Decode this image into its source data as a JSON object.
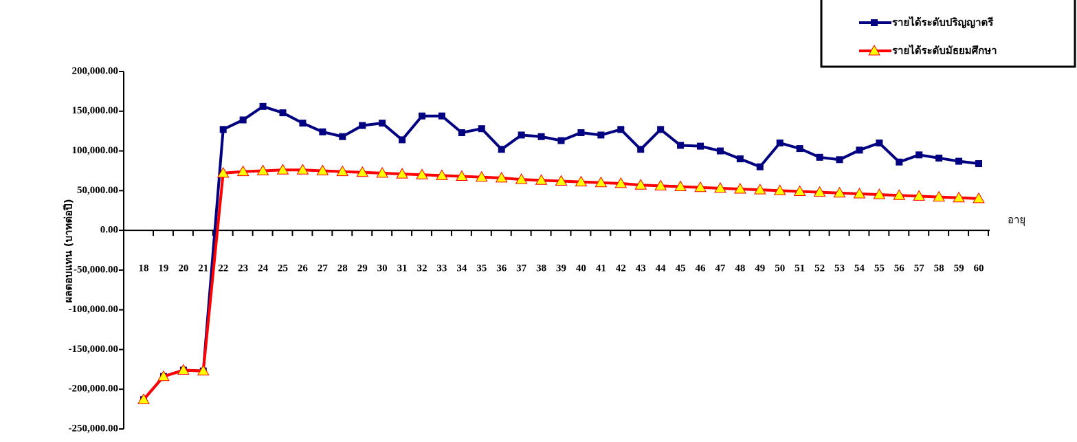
{
  "chart_data": {
    "type": "line",
    "y_label": "ผลตอบแทน (บาทต่อปี)",
    "x_label": "อายุ",
    "categories": [
      "18",
      "19",
      "20",
      "21",
      "22",
      "23",
      "24",
      "25",
      "26",
      "27",
      "28",
      "29",
      "30",
      "31",
      "32",
      "33",
      "34",
      "35",
      "36",
      "37",
      "38",
      "39",
      "40",
      "41",
      "42",
      "43",
      "44",
      "45",
      "46",
      "47",
      "48",
      "49",
      "50",
      "51",
      "52",
      "53",
      "54",
      "55",
      "56",
      "57",
      "58",
      "59",
      "60"
    ],
    "series": [
      {
        "name": "รายได้ระดับปริญญาตรี",
        "color": "#000080",
        "marker": "square",
        "marker_fill": "#000080",
        "values": [
          -213000,
          -184000,
          -176000,
          -177000,
          127000,
          139000,
          156000,
          148000,
          135000,
          124000,
          118000,
          132000,
          135000,
          114000,
          144000,
          144000,
          123000,
          128000,
          102000,
          120000,
          118000,
          113000,
          123000,
          120000,
          127000,
          102000,
          127000,
          107000,
          106000,
          100000,
          90000,
          80000,
          110000,
          103000,
          92000,
          89000,
          101000,
          110000,
          86000,
          95000,
          91000,
          87000,
          84000
        ]
      },
      {
        "name": "รายได้ระดับมัธยมศึกษา",
        "color": "#ff0000",
        "marker": "triangle",
        "marker_fill": "#ffff00",
        "values": [
          -213000,
          -184000,
          -176000,
          -177000,
          72000,
          74000,
          75000,
          76000,
          76000,
          75000,
          74000,
          73000,
          72000,
          71000,
          70000,
          69000,
          68000,
          67000,
          66000,
          64000,
          63000,
          62000,
          61000,
          60000,
          59000,
          57000,
          56000,
          55000,
          54000,
          53000,
          52000,
          51000,
          50000,
          49000,
          48000,
          47000,
          46000,
          45000,
          44000,
          43000,
          42000,
          41000,
          40000
        ]
      }
    ],
    "ylim": [
      -250000,
      200000
    ],
    "yticks": [
      {
        "value": -250000,
        "label": "-250,000.00"
      },
      {
        "value": -200000,
        "label": "-200,000.00"
      },
      {
        "value": -150000,
        "label": "-150,000.00"
      },
      {
        "value": -100000,
        "label": "-100,000.00"
      },
      {
        "value": -50000,
        "label": "-50,000.00"
      },
      {
        "value": 0,
        "label": "0.00"
      },
      {
        "value": 50000,
        "label": "50,000.00"
      },
      {
        "value": 100000,
        "label": "100,000.00"
      },
      {
        "value": 150000,
        "label": "150,000.00"
      },
      {
        "value": 200000,
        "label": "200,000.00"
      }
    ],
    "grid": false,
    "legend": "top-right"
  }
}
